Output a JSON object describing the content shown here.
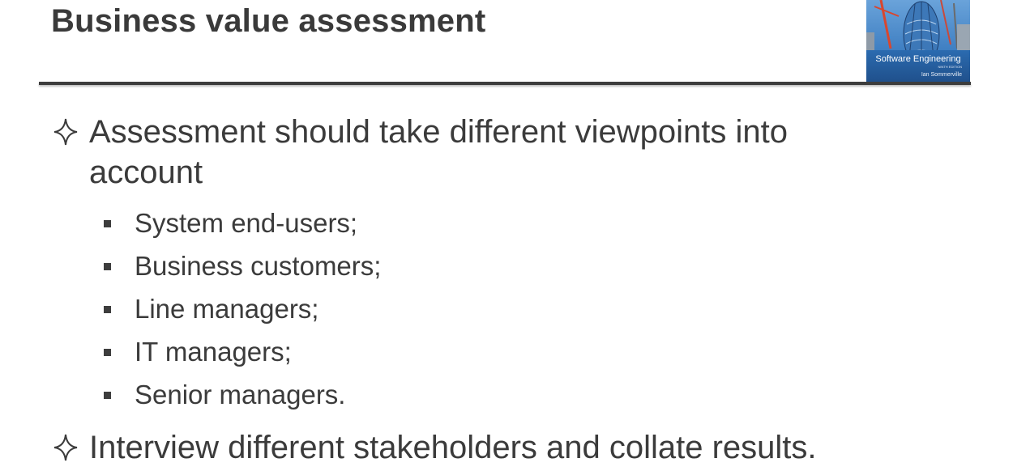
{
  "slide": {
    "title": "Business value assessment"
  },
  "cover": {
    "title": "Software Engineering",
    "edition": "NINTH EDITION",
    "author": "Ian Sommerville"
  },
  "bullets": [
    {
      "text": "Assessment should take different viewpoints into account",
      "line1": "Assessment should take different viewpoints into",
      "line2": "account",
      "subitems": [
        "System end-users;",
        "Business customers;",
        "Line managers;",
        "IT managers;",
        "Senior managers."
      ]
    },
    {
      "text": "Interview different stakeholders and collate results."
    }
  ],
  "colors": {
    "text": "#3b3b3b",
    "rule": "#3d3d3d",
    "cover_sky": "#4c86c6"
  }
}
